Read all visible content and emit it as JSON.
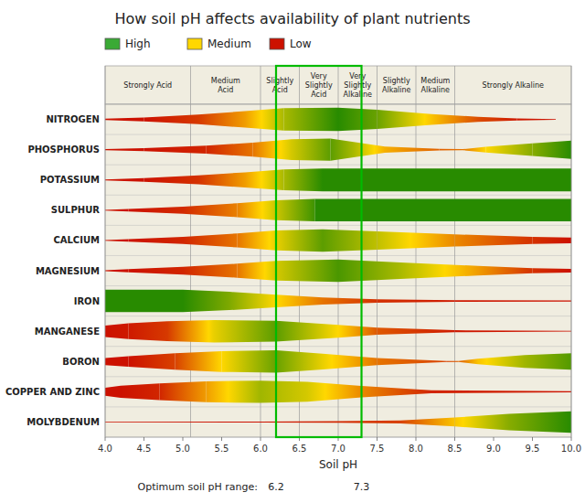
{
  "chart_data": {
    "type": "nutrient_availability",
    "title": "How soil pH affects availability of plant nutrients",
    "xlabel": "Soil pH",
    "xlim": [
      4.0,
      10.0
    ],
    "xticks": [
      {
        "value": 4.0,
        "label": "4.0"
      },
      4.5,
      {
        "value": 5.0,
        "label": "5.0"
      },
      5.5,
      {
        "value": 6.0,
        "label": "6.0"
      },
      6.5,
      {
        "value": 7.0,
        "label": "7.0"
      },
      7.5,
      {
        "value": 8.0,
        "label": "8.0"
      },
      8.5,
      {
        "value": 9.0,
        "label": "9.0"
      },
      9.5,
      {
        "value": 10.0,
        "label": "10.0"
      }
    ],
    "background": "#f0ede0",
    "color_scale": [
      {
        "value": 0,
        "color": "#cc1100"
      },
      {
        "value": 0.5,
        "color": "#ffd700"
      },
      {
        "value": 1,
        "color": "#288b00"
      }
    ],
    "legend_items": [
      {
        "name": "High",
        "color": "#3aaa35"
      },
      {
        "name": "Medium",
        "color": "#ffd700"
      },
      {
        "name": "Low",
        "color": "#cc1100"
      }
    ],
    "column_labels": [
      "Strongly Acid",
      "Medium\nAcid",
      "Slightly\nAcid",
      "Very\nSlightly\nAcid",
      "Very\nSlightly\nAlkaline",
      "Slightly\nAlkaline",
      "Medium\nAlkaline",
      "Strongly Alkaline"
    ],
    "column_boundaries": [
      4.0,
      5.1,
      6.0,
      6.5,
      7.0,
      7.5,
      8.0,
      8.5,
      10.0
    ],
    "optimum": {
      "label": "Optimum soil pH range:",
      "low": 6.2,
      "high": 7.3,
      "color": "#00bb00"
    },
    "series": [
      {
        "name": "NITROGEN",
        "segments": [
          {
            "x0": 4.0,
            "x1": 4.5,
            "h0": 0.05,
            "h1": 0.15,
            "c0": 0.0,
            "c1": 0.0
          },
          {
            "x0": 4.5,
            "x1": 5.2,
            "h0": 0.15,
            "h1": 0.38,
            "c0": 0.0,
            "c1": 0.1
          },
          {
            "x0": 5.2,
            "x1": 5.8,
            "h0": 0.38,
            "h1": 0.65,
            "c0": 0.1,
            "c1": 0.35
          },
          {
            "x0": 5.8,
            "x1": 6.3,
            "h0": 0.65,
            "h1": 0.88,
            "c0": 0.35,
            "c1": 0.7
          },
          {
            "x0": 6.3,
            "x1": 7.0,
            "h0": 0.88,
            "h1": 0.92,
            "c0": 0.7,
            "c1": 1.0
          },
          {
            "x0": 7.0,
            "x1": 7.5,
            "h0": 0.92,
            "h1": 0.75,
            "c0": 1.0,
            "c1": 0.85
          },
          {
            "x0": 7.5,
            "x1": 8.2,
            "h0": 0.75,
            "h1": 0.42,
            "c0": 0.85,
            "c1": 0.45
          },
          {
            "x0": 8.2,
            "x1": 8.8,
            "h0": 0.42,
            "h1": 0.2,
            "c0": 0.45,
            "c1": 0.15
          },
          {
            "x0": 8.8,
            "x1": 9.3,
            "h0": 0.2,
            "h1": 0.08,
            "c0": 0.15,
            "c1": 0.02
          },
          {
            "x0": 9.3,
            "x1": 9.8,
            "h0": 0.08,
            "h1": 0.03,
            "c0": 0.02,
            "c1": 0.0
          }
        ]
      },
      {
        "name": "PHOSPHORUS",
        "segments": [
          {
            "x0": 4.0,
            "x1": 4.5,
            "h0": 0.04,
            "h1": 0.12,
            "c0": 0.0,
            "c1": 0.0
          },
          {
            "x0": 4.5,
            "x1": 5.3,
            "h0": 0.12,
            "h1": 0.32,
            "c0": 0.0,
            "c1": 0.05
          },
          {
            "x0": 5.3,
            "x1": 5.9,
            "h0": 0.32,
            "h1": 0.55,
            "c0": 0.05,
            "c1": 0.25
          },
          {
            "x0": 5.9,
            "x1": 6.4,
            "h0": 0.55,
            "h1": 0.82,
            "c0": 0.25,
            "c1": 0.6
          },
          {
            "x0": 6.4,
            "x1": 6.9,
            "h0": 0.82,
            "h1": 0.88,
            "c0": 0.6,
            "c1": 0.88
          },
          {
            "x0": 6.9,
            "x1": 7.2,
            "h0": 0.88,
            "h1": 0.6,
            "c0": 0.88,
            "c1": 0.7
          },
          {
            "x0": 7.2,
            "x1": 7.6,
            "h0": 0.6,
            "h1": 0.25,
            "c0": 0.7,
            "c1": 0.4
          },
          {
            "x0": 7.6,
            "x1": 8.3,
            "h0": 0.25,
            "h1": 0.06,
            "c0": 0.4,
            "c1": 0.2
          },
          {
            "x0": 8.3,
            "x1": 8.6,
            "h0": 0.06,
            "h1": 0.04,
            "c0": 0.2,
            "c1": 0.25
          },
          {
            "x0": 8.6,
            "x1": 8.9,
            "h0": 0.04,
            "h1": 0.22,
            "c0": 0.25,
            "c1": 0.5
          },
          {
            "x0": 8.9,
            "x1": 9.5,
            "h0": 0.22,
            "h1": 0.5,
            "c0": 0.5,
            "c1": 0.78
          },
          {
            "x0": 9.5,
            "x1": 10.0,
            "h0": 0.5,
            "h1": 0.72,
            "c0": 0.78,
            "c1": 1.0
          }
        ]
      },
      {
        "name": "POTASSIUM",
        "segments": [
          {
            "x0": 4.0,
            "x1": 4.5,
            "h0": 0.04,
            "h1": 0.14,
            "c0": 0.0,
            "c1": 0.0
          },
          {
            "x0": 4.5,
            "x1": 5.2,
            "h0": 0.14,
            "h1": 0.35,
            "c0": 0.0,
            "c1": 0.08
          },
          {
            "x0": 5.2,
            "x1": 5.8,
            "h0": 0.35,
            "h1": 0.6,
            "c0": 0.08,
            "c1": 0.35
          },
          {
            "x0": 5.8,
            "x1": 6.3,
            "h0": 0.6,
            "h1": 0.82,
            "c0": 0.35,
            "c1": 0.7
          },
          {
            "x0": 6.3,
            "x1": 6.8,
            "h0": 0.82,
            "h1": 0.9,
            "c0": 0.7,
            "c1": 1.0
          },
          {
            "x0": 6.8,
            "x1": 10.0,
            "h0": 0.9,
            "h1": 0.9,
            "c0": 1.0,
            "c1": 1.0
          }
        ]
      },
      {
        "name": "SULPHUR",
        "segments": [
          {
            "x0": 4.0,
            "x1": 4.3,
            "h0": 0.03,
            "h1": 0.1,
            "c0": 0.0,
            "c1": 0.0
          },
          {
            "x0": 4.3,
            "x1": 5.0,
            "h0": 0.1,
            "h1": 0.28,
            "c0": 0.0,
            "c1": 0.06
          },
          {
            "x0": 5.0,
            "x1": 5.7,
            "h0": 0.28,
            "h1": 0.55,
            "c0": 0.06,
            "c1": 0.28
          },
          {
            "x0": 5.7,
            "x1": 6.2,
            "h0": 0.55,
            "h1": 0.78,
            "c0": 0.28,
            "c1": 0.62
          },
          {
            "x0": 6.2,
            "x1": 6.7,
            "h0": 0.78,
            "h1": 0.88,
            "c0": 0.62,
            "c1": 0.95
          },
          {
            "x0": 6.7,
            "x1": 10.0,
            "h0": 0.88,
            "h1": 0.88,
            "c0": 1.0,
            "c1": 1.0
          }
        ]
      },
      {
        "name": "CALCIUM",
        "segments": [
          {
            "x0": 4.0,
            "x1": 4.3,
            "h0": 0.03,
            "h1": 0.1,
            "c0": 0.0,
            "c1": 0.0
          },
          {
            "x0": 4.3,
            "x1": 5.0,
            "h0": 0.1,
            "h1": 0.28,
            "c0": 0.0,
            "c1": 0.05
          },
          {
            "x0": 5.0,
            "x1": 5.7,
            "h0": 0.28,
            "h1": 0.55,
            "c0": 0.05,
            "c1": 0.25
          },
          {
            "x0": 5.7,
            "x1": 6.2,
            "h0": 0.55,
            "h1": 0.78,
            "c0": 0.25,
            "c1": 0.55
          },
          {
            "x0": 6.2,
            "x1": 6.8,
            "h0": 0.78,
            "h1": 0.88,
            "c0": 0.55,
            "c1": 0.88
          },
          {
            "x0": 6.8,
            "x1": 7.5,
            "h0": 0.88,
            "h1": 0.72,
            "c0": 0.88,
            "c1": 0.65
          },
          {
            "x0": 7.5,
            "x1": 8.5,
            "h0": 0.72,
            "h1": 0.48,
            "c0": 0.65,
            "c1": 0.3
          },
          {
            "x0": 8.5,
            "x1": 9.5,
            "h0": 0.48,
            "h1": 0.28,
            "c0": 0.3,
            "c1": 0.08
          },
          {
            "x0": 9.5,
            "x1": 10.0,
            "h0": 0.28,
            "h1": 0.22,
            "c0": 0.08,
            "c1": 0.0
          }
        ]
      },
      {
        "name": "MAGNESIUM",
        "segments": [
          {
            "x0": 4.0,
            "x1": 4.3,
            "h0": 0.03,
            "h1": 0.12,
            "c0": 0.0,
            "c1": 0.0
          },
          {
            "x0": 4.3,
            "x1": 5.0,
            "h0": 0.12,
            "h1": 0.3,
            "c0": 0.0,
            "c1": 0.05
          },
          {
            "x0": 5.0,
            "x1": 5.7,
            "h0": 0.3,
            "h1": 0.55,
            "c0": 0.05,
            "c1": 0.25
          },
          {
            "x0": 5.7,
            "x1": 6.2,
            "h0": 0.55,
            "h1": 0.78,
            "c0": 0.25,
            "c1": 0.6
          },
          {
            "x0": 6.2,
            "x1": 7.0,
            "h0": 0.78,
            "h1": 0.88,
            "c0": 0.6,
            "c1": 0.92
          },
          {
            "x0": 7.0,
            "x1": 7.8,
            "h0": 0.88,
            "h1": 0.65,
            "c0": 0.92,
            "c1": 0.7
          },
          {
            "x0": 7.8,
            "x1": 8.8,
            "h0": 0.65,
            "h1": 0.38,
            "c0": 0.7,
            "c1": 0.35
          },
          {
            "x0": 8.8,
            "x1": 9.5,
            "h0": 0.38,
            "h1": 0.2,
            "c0": 0.35,
            "c1": 0.08
          },
          {
            "x0": 9.5,
            "x1": 10.0,
            "h0": 0.2,
            "h1": 0.15,
            "c0": 0.08,
            "c1": 0.0
          }
        ]
      },
      {
        "name": "IRON",
        "segments": [
          {
            "x0": 4.0,
            "x1": 5.0,
            "h0": 0.88,
            "h1": 0.88,
            "c0": 1.0,
            "c1": 1.0
          },
          {
            "x0": 5.0,
            "x1": 5.6,
            "h0": 0.88,
            "h1": 0.72,
            "c0": 1.0,
            "c1": 0.8
          },
          {
            "x0": 5.6,
            "x1": 6.2,
            "h0": 0.72,
            "h1": 0.5,
            "c0": 0.8,
            "c1": 0.5
          },
          {
            "x0": 6.2,
            "x1": 6.8,
            "h0": 0.5,
            "h1": 0.28,
            "c0": 0.5,
            "c1": 0.25
          },
          {
            "x0": 6.8,
            "x1": 7.5,
            "h0": 0.28,
            "h1": 0.14,
            "c0": 0.25,
            "c1": 0.08
          },
          {
            "x0": 7.5,
            "x1": 8.5,
            "h0": 0.14,
            "h1": 0.06,
            "c0": 0.08,
            "c1": 0.02
          },
          {
            "x0": 8.5,
            "x1": 10.0,
            "h0": 0.06,
            "h1": 0.04,
            "c0": 0.02,
            "c1": 0.0
          }
        ]
      },
      {
        "name": "MANGANESE",
        "segments": [
          {
            "x0": 4.0,
            "x1": 4.3,
            "h0": 0.45,
            "h1": 0.62,
            "c0": 0.0,
            "c1": 0.02
          },
          {
            "x0": 4.3,
            "x1": 4.8,
            "h0": 0.62,
            "h1": 0.78,
            "c0": 0.02,
            "c1": 0.1
          },
          {
            "x0": 4.8,
            "x1": 5.4,
            "h0": 0.78,
            "h1": 0.88,
            "c0": 0.1,
            "c1": 0.55
          },
          {
            "x0": 5.4,
            "x1": 6.2,
            "h0": 0.88,
            "h1": 0.82,
            "c0": 0.55,
            "c1": 0.88
          },
          {
            "x0": 6.2,
            "x1": 7.0,
            "h0": 0.82,
            "h1": 0.5,
            "c0": 0.88,
            "c1": 0.5
          },
          {
            "x0": 7.0,
            "x1": 7.5,
            "h0": 0.5,
            "h1": 0.28,
            "c0": 0.5,
            "c1": 0.18
          },
          {
            "x0": 7.5,
            "x1": 8.5,
            "h0": 0.28,
            "h1": 0.08,
            "c0": 0.18,
            "c1": 0.02
          },
          {
            "x0": 8.5,
            "x1": 10.0,
            "h0": 0.08,
            "h1": 0.03,
            "c0": 0.02,
            "c1": 0.0
          }
        ]
      },
      {
        "name": "BORON",
        "segments": [
          {
            "x0": 4.0,
            "x1": 4.3,
            "h0": 0.28,
            "h1": 0.42,
            "c0": 0.0,
            "c1": 0.0
          },
          {
            "x0": 4.3,
            "x1": 4.9,
            "h0": 0.42,
            "h1": 0.65,
            "c0": 0.0,
            "c1": 0.12
          },
          {
            "x0": 4.9,
            "x1": 5.5,
            "h0": 0.65,
            "h1": 0.82,
            "c0": 0.12,
            "c1": 0.5
          },
          {
            "x0": 5.5,
            "x1": 6.2,
            "h0": 0.82,
            "h1": 0.88,
            "c0": 0.5,
            "c1": 0.85
          },
          {
            "x0": 6.2,
            "x1": 6.8,
            "h0": 0.88,
            "h1": 0.62,
            "c0": 0.85,
            "c1": 0.55
          },
          {
            "x0": 6.8,
            "x1": 7.5,
            "h0": 0.62,
            "h1": 0.28,
            "c0": 0.55,
            "c1": 0.25
          },
          {
            "x0": 7.5,
            "x1": 8.4,
            "h0": 0.28,
            "h1": 0.04,
            "c0": 0.25,
            "c1": 0.12
          },
          {
            "x0": 8.4,
            "x1": 8.55,
            "h0": 0.04,
            "h1": 0.04,
            "c0": 0.12,
            "c1": 0.2
          },
          {
            "x0": 8.55,
            "x1": 8.8,
            "h0": 0.04,
            "h1": 0.22,
            "c0": 0.2,
            "c1": 0.45
          },
          {
            "x0": 8.8,
            "x1": 9.4,
            "h0": 0.22,
            "h1": 0.5,
            "c0": 0.45,
            "c1": 0.72
          },
          {
            "x0": 9.4,
            "x1": 10.0,
            "h0": 0.5,
            "h1": 0.65,
            "c0": 0.72,
            "c1": 0.9
          }
        ]
      },
      {
        "name": "COPPER AND ZINC",
        "segments": [
          {
            "x0": 4.0,
            "x1": 4.2,
            "h0": 0.32,
            "h1": 0.48,
            "c0": 0.0,
            "c1": 0.0
          },
          {
            "x0": 4.2,
            "x1": 4.7,
            "h0": 0.48,
            "h1": 0.65,
            "c0": 0.0,
            "c1": 0.05
          },
          {
            "x0": 4.7,
            "x1": 5.3,
            "h0": 0.65,
            "h1": 0.82,
            "c0": 0.05,
            "c1": 0.35
          },
          {
            "x0": 5.3,
            "x1": 6.0,
            "h0": 0.82,
            "h1": 0.88,
            "c0": 0.35,
            "c1": 0.72
          },
          {
            "x0": 6.0,
            "x1": 6.6,
            "h0": 0.88,
            "h1": 0.78,
            "c0": 0.72,
            "c1": 0.6
          },
          {
            "x0": 6.6,
            "x1": 7.3,
            "h0": 0.78,
            "h1": 0.45,
            "c0": 0.6,
            "c1": 0.3
          },
          {
            "x0": 7.3,
            "x1": 8.2,
            "h0": 0.45,
            "h1": 0.12,
            "c0": 0.3,
            "c1": 0.05
          },
          {
            "x0": 8.2,
            "x1": 10.0,
            "h0": 0.12,
            "h1": 0.04,
            "c0": 0.05,
            "c1": 0.0
          }
        ]
      },
      {
        "name": "MOLYBDENUM",
        "segments": [
          {
            "x0": 4.0,
            "x1": 6.0,
            "h0": 0.03,
            "h1": 0.04,
            "c0": 0.0,
            "c1": 0.0
          },
          {
            "x0": 6.0,
            "x1": 7.0,
            "h0": 0.04,
            "h1": 0.06,
            "c0": 0.0,
            "c1": 0.05
          },
          {
            "x0": 7.0,
            "x1": 7.8,
            "h0": 0.06,
            "h1": 0.12,
            "c0": 0.05,
            "c1": 0.12
          },
          {
            "x0": 7.8,
            "x1": 8.5,
            "h0": 0.12,
            "h1": 0.35,
            "c0": 0.12,
            "c1": 0.45
          },
          {
            "x0": 8.5,
            "x1": 9.2,
            "h0": 0.35,
            "h1": 0.65,
            "c0": 0.45,
            "c1": 0.78
          },
          {
            "x0": 9.2,
            "x1": 10.0,
            "h0": 0.65,
            "h1": 0.85,
            "c0": 0.78,
            "c1": 1.0
          }
        ]
      }
    ]
  }
}
